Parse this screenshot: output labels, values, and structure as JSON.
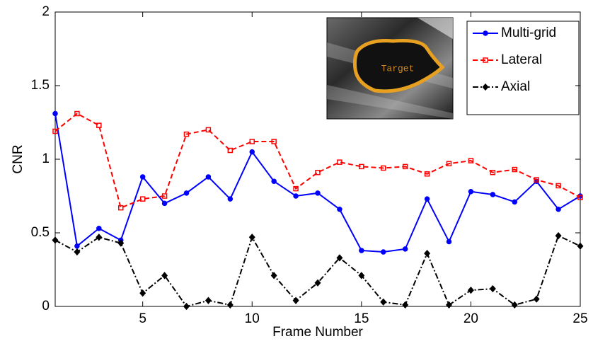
{
  "chart_data": {
    "type": "line",
    "x_label": "Frame Number",
    "y_label": "CNR",
    "annotation": "Target",
    "x": [
      1,
      2,
      3,
      4,
      5,
      6,
      7,
      8,
      9,
      10,
      11,
      12,
      13,
      14,
      15,
      16,
      17,
      18,
      19,
      20,
      21,
      22,
      23,
      24,
      25
    ],
    "xlim": [
      1,
      25
    ],
    "xticks": [
      5,
      10,
      15,
      20,
      25
    ],
    "ylim": [
      0,
      2
    ],
    "yticks": [
      0,
      0.5,
      1,
      1.5,
      2
    ],
    "grid": false,
    "legend": "upper right",
    "series": [
      {
        "name": "Multi-grid",
        "color": "#0000ff",
        "dash": "solid",
        "marker": "circle",
        "values": [
          1.31,
          0.41,
          0.53,
          0.45,
          0.88,
          0.7,
          0.77,
          0.88,
          0.73,
          1.05,
          0.85,
          0.75,
          0.77,
          0.66,
          0.38,
          0.37,
          0.39,
          0.73,
          0.44,
          0.78,
          0.76,
          0.71,
          0.85,
          0.66,
          0.75
        ]
      },
      {
        "name": "Lateral",
        "color": "#ff0000",
        "dash": "dashed",
        "marker": "square",
        "values": [
          1.19,
          1.31,
          1.23,
          0.67,
          0.73,
          0.75,
          1.17,
          1.2,
          1.06,
          1.12,
          1.12,
          0.8,
          0.91,
          0.98,
          0.95,
          0.94,
          0.95,
          0.9,
          0.97,
          0.99,
          0.91,
          0.93,
          0.86,
          0.82,
          0.74
        ]
      },
      {
        "name": "Axial",
        "color": "#000000",
        "dash": "dashdot",
        "marker": "diamond",
        "values": [
          0.45,
          0.37,
          0.47,
          0.43,
          0.09,
          0.21,
          0.0,
          0.04,
          0.01,
          0.47,
          0.21,
          0.04,
          0.16,
          0.33,
          0.21,
          0.03,
          0.01,
          0.36,
          0.01,
          0.11,
          0.12,
          0.01,
          0.05,
          0.48,
          0.41
        ]
      }
    ]
  }
}
